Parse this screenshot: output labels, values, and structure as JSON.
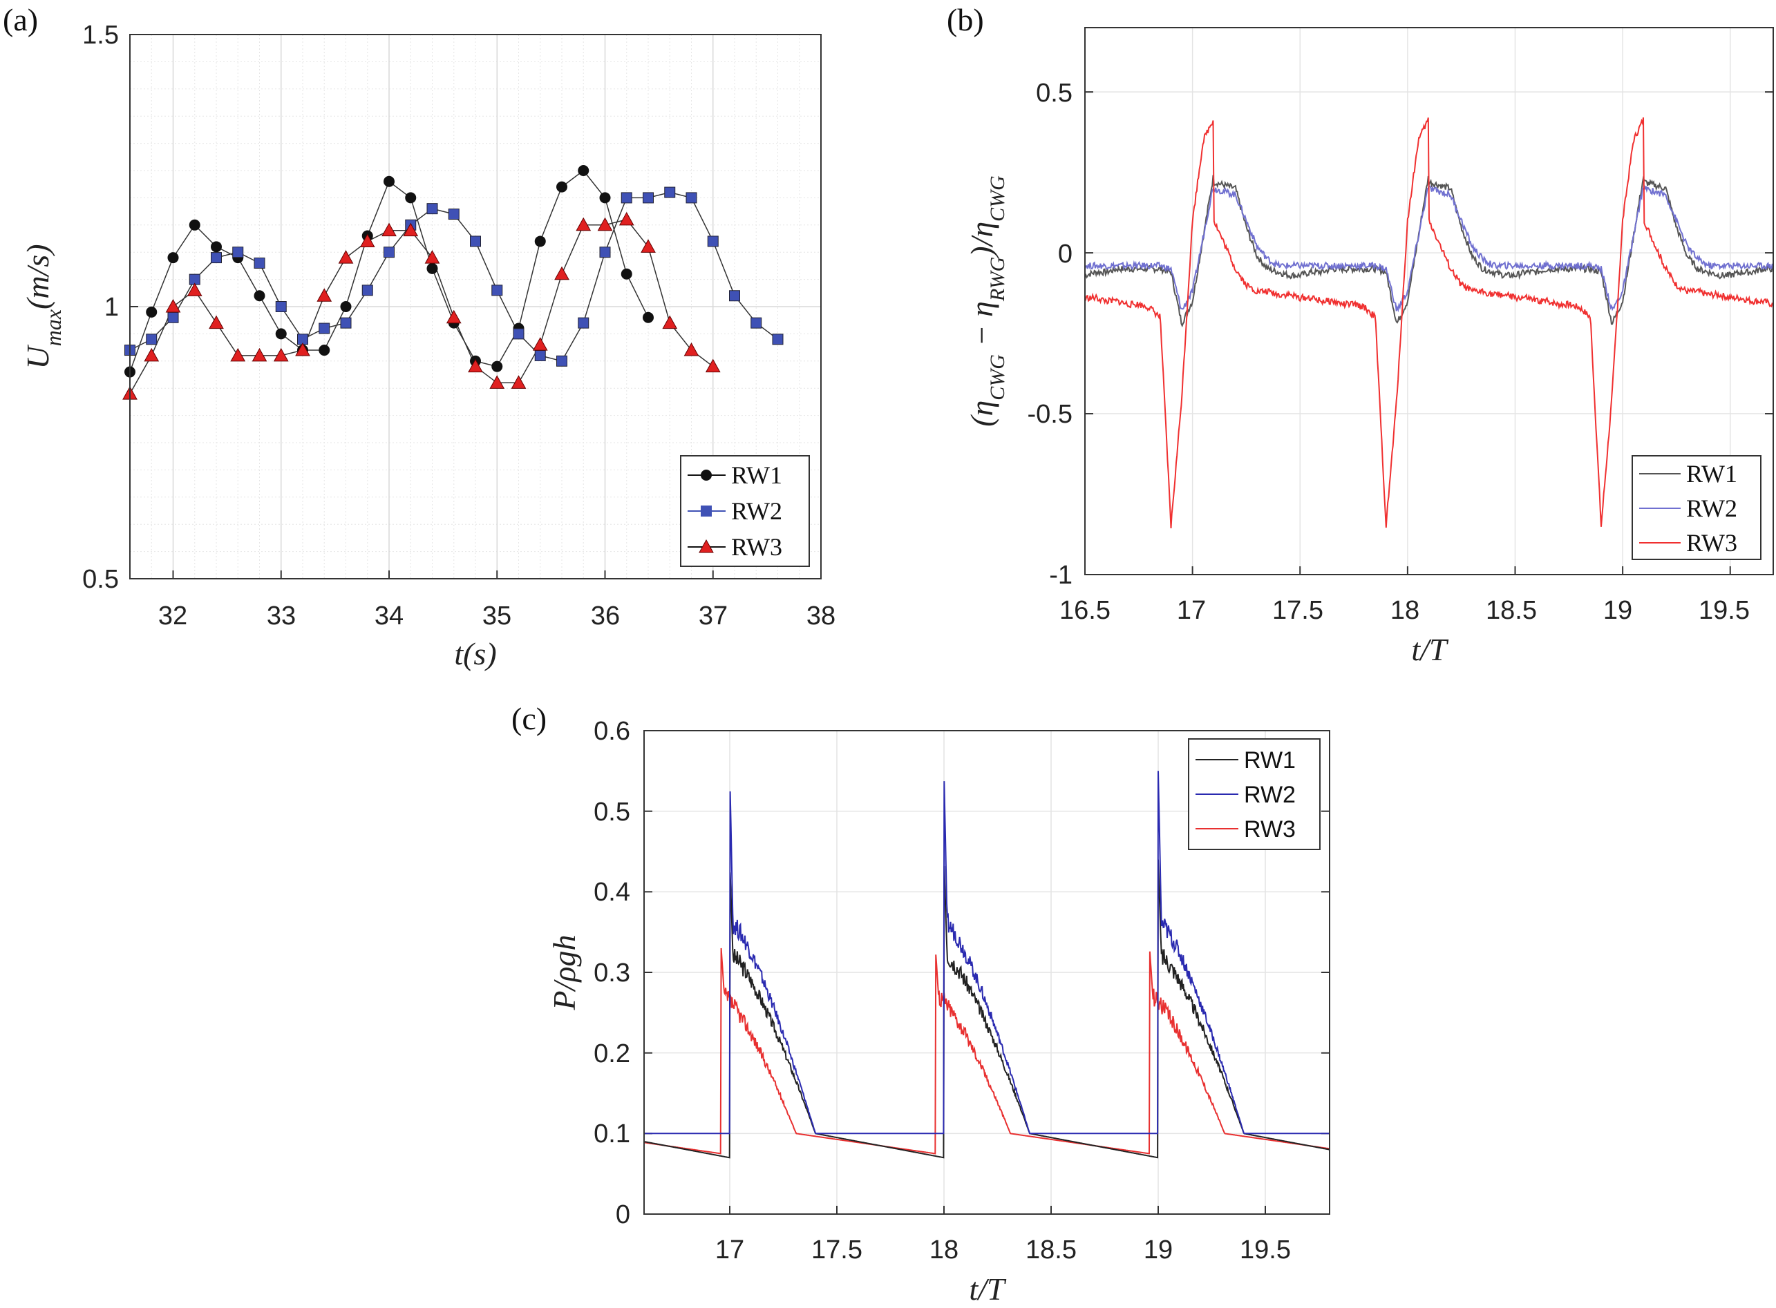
{
  "chart_data": [
    {
      "panel": "(a)",
      "type": "line",
      "xlabel": "t(s)",
      "ylabel": "U_max(m/s)",
      "xlim": [
        31.6,
        38
      ],
      "ylim": [
        0.5,
        1.5
      ],
      "xticks": [
        "32",
        "33",
        "34",
        "35",
        "36",
        "37",
        "38"
      ],
      "yticks": [
        "0.5",
        "1",
        "1.5"
      ],
      "x": [
        31.6,
        31.8,
        32.0,
        32.2,
        32.4,
        32.6,
        32.8,
        33.0,
        33.2,
        33.4,
        33.6,
        33.8,
        34.0,
        34.2,
        34.4,
        34.6,
        34.8,
        35.0,
        35.2,
        35.4,
        35.6,
        35.8,
        36.0,
        36.2,
        36.4,
        36.6,
        36.8,
        37.0,
        37.2,
        37.4,
        37.6
      ],
      "series": [
        {
          "name": "RW1",
          "color": "#111111",
          "marker": "circle",
          "values": [
            0.88,
            0.99,
            1.09,
            1.15,
            1.11,
            1.09,
            1.02,
            0.95,
            0.92,
            0.92,
            1.0,
            1.13,
            1.23,
            1.2,
            1.07,
            0.97,
            0.9,
            0.89,
            0.96,
            1.12,
            1.22,
            1.25,
            1.2,
            1.06,
            0.98,
            null,
            null,
            null,
            null,
            null,
            null
          ]
        },
        {
          "name": "RW2",
          "color": "#3f51b5",
          "marker": "square",
          "values": [
            0.92,
            0.94,
            0.98,
            1.05,
            1.09,
            1.1,
            1.08,
            1.0,
            0.94,
            0.96,
            0.97,
            1.03,
            1.1,
            1.15,
            1.18,
            1.17,
            1.12,
            1.03,
            0.95,
            0.91,
            0.9,
            0.97,
            1.1,
            1.2,
            1.2,
            1.21,
            1.2,
            1.12,
            1.02,
            0.97,
            0.94
          ]
        },
        {
          "name": "RW3",
          "color": "#e02020",
          "marker": "triangle",
          "values": [
            0.84,
            0.91,
            1.0,
            1.03,
            0.97,
            0.91,
            0.91,
            0.91,
            0.92,
            1.02,
            1.09,
            1.12,
            1.14,
            1.14,
            1.09,
            0.98,
            0.89,
            0.86,
            0.86,
            0.93,
            1.06,
            1.15,
            1.15,
            1.16,
            1.11,
            0.97,
            0.92,
            0.89,
            null,
            null,
            null
          ]
        }
      ],
      "legend": "bottom-right"
    },
    {
      "panel": "(b)",
      "type": "line",
      "xlabel": "t/T",
      "ylabel": "(η_CWG − η_RWG)/η_CWG",
      "xlim": [
        16.5,
        19.7
      ],
      "ylim": [
        -1,
        0.7
      ],
      "xticks": [
        "16.5",
        "17",
        "17.5",
        "18",
        "18.5",
        "19",
        "19.5"
      ],
      "yticks": [
        "-1",
        "-0.5",
        "0",
        "0.5"
      ],
      "period_profile_phase": [
        0.0,
        0.1,
        0.15,
        0.2,
        0.25,
        0.3,
        0.35,
        0.4,
        0.45,
        0.5,
        0.55,
        0.6,
        0.65,
        0.7,
        0.75,
        0.8,
        0.85,
        0.9,
        0.95,
        1.0
      ],
      "series": [
        {
          "name": "RW1",
          "color": "#555555",
          "profile": [
            0.22,
            0.2,
            0.08,
            -0.01,
            -0.05,
            -0.06,
            -0.07,
            -0.07,
            -0.06,
            -0.06,
            -0.05,
            -0.05,
            -0.05,
            -0.05,
            -0.05,
            -0.06,
            -0.22,
            -0.15,
            0.05,
            0.25
          ]
        },
        {
          "name": "RW2",
          "color": "#7070d0",
          "profile": [
            0.2,
            0.18,
            0.1,
            0.02,
            -0.02,
            -0.04,
            -0.04,
            -0.04,
            -0.04,
            -0.04,
            -0.04,
            -0.04,
            -0.04,
            -0.04,
            -0.04,
            -0.05,
            -0.18,
            -0.12,
            0.05,
            0.22
          ]
        },
        {
          "name": "RW3",
          "color": "#f03030",
          "profile": [
            0.1,
            -0.05,
            -0.1,
            -0.12,
            -0.12,
            -0.13,
            -0.13,
            -0.14,
            -0.14,
            -0.15,
            -0.15,
            -0.16,
            -0.16,
            -0.17,
            -0.2,
            -0.85,
            -0.45,
            0.1,
            0.35,
            0.42
          ]
        }
      ],
      "legend": "bottom-right"
    },
    {
      "panel": "(c)",
      "type": "line",
      "xlabel": "t/T",
      "ylabel": "P/ρgh",
      "xlim": [
        16.6,
        19.8
      ],
      "ylim": [
        0,
        0.6
      ],
      "xticks": [
        "17",
        "17.5",
        "18",
        "18.5",
        "19",
        "19.5"
      ],
      "yticks": [
        "0",
        "0.1",
        "0.2",
        "0.3",
        "0.4",
        "0.5",
        "0.6"
      ],
      "peaks": {
        "RW1": 0.44,
        "RW2": 0.55,
        "RW3": 0.33
      },
      "series": [
        {
          "name": "RW1",
          "color": "#222222",
          "plateau": 0.32,
          "base": 0.1,
          "trough": 0.07
        },
        {
          "name": "RW2",
          "color": "#2a2ab0",
          "plateau": 0.36,
          "base": 0.1,
          "trough": 0.1
        },
        {
          "name": "RW3",
          "color": "#e83030",
          "plateau": 0.27,
          "base": 0.1,
          "trough": 0.075
        }
      ],
      "legend": "top-right"
    }
  ],
  "labels": {
    "a": {
      "panel": "(a)",
      "ylabel_main": "U",
      "ylabel_sub": "max",
      "ylabel_rest": "(m/s)",
      "xlabel": "t(s)",
      "xticks": [
        "32",
        "33",
        "34",
        "35",
        "36",
        "37",
        "38"
      ],
      "yticks": [
        "0.5",
        "1",
        "1.5"
      ],
      "legend": [
        "RW1",
        "RW2",
        "RW3"
      ]
    },
    "b": {
      "panel": "(b)",
      "ylabel_p1": "(η",
      "ylabel_s1": "CWG",
      "ylabel_p2": " − η",
      "ylabel_s2": "RWG",
      "ylabel_p3": ")/η",
      "ylabel_s3": "CWG",
      "xlabel": "t/T",
      "xticks": [
        "16.5",
        "17",
        "17.5",
        "18",
        "18.5",
        "19",
        "19.5"
      ],
      "yticks": [
        "-1",
        "-0.5",
        "0",
        "0.5"
      ],
      "legend": [
        "RW1",
        "RW2",
        "RW3"
      ]
    },
    "c": {
      "panel": "(c)",
      "ylabel": "P/ρgh",
      "xlabel": "t/T",
      "xticks": [
        "17",
        "17.5",
        "18",
        "18.5",
        "19",
        "19.5"
      ],
      "yticks": [
        "0",
        "0.1",
        "0.2",
        "0.3",
        "0.4",
        "0.5",
        "0.6"
      ],
      "legend": [
        "RW1",
        "RW2",
        "RW3"
      ]
    }
  }
}
